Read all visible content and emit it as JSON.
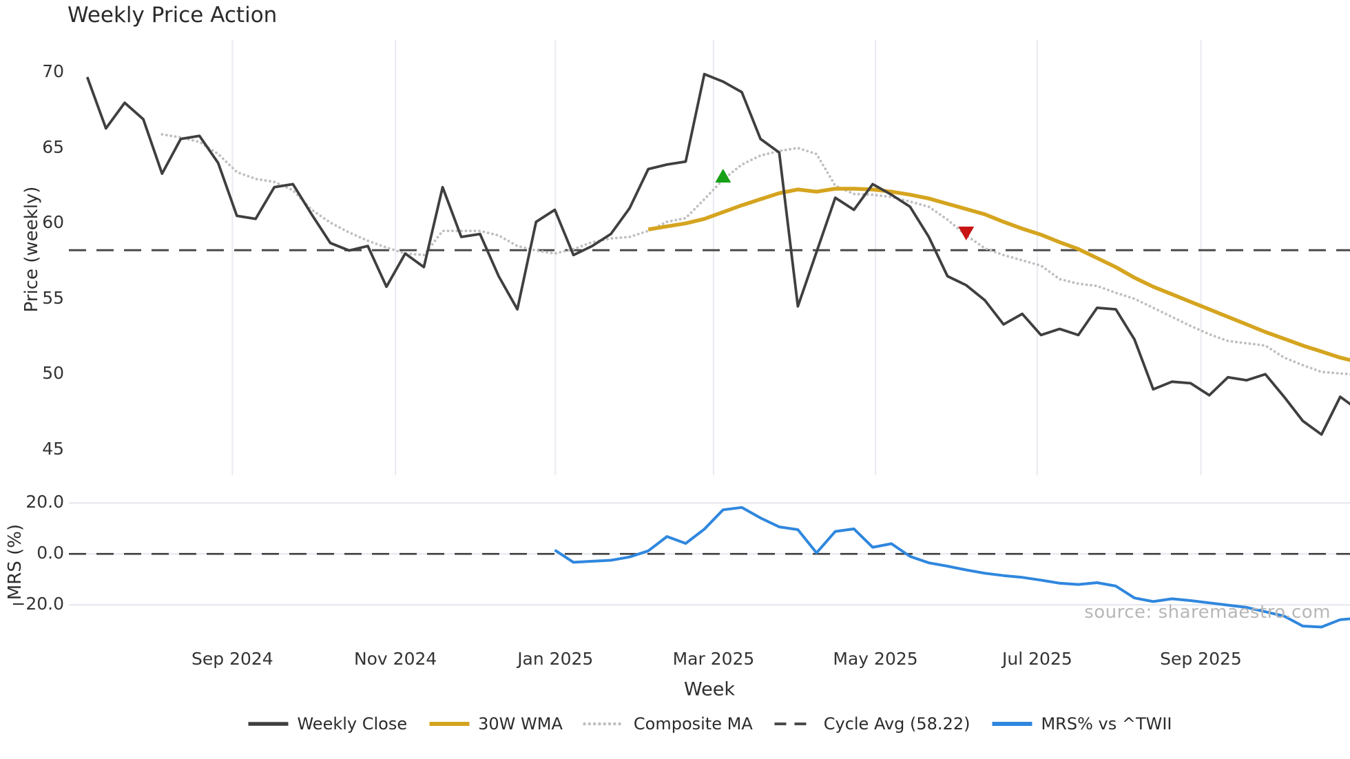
{
  "title": "Weekly Price Action",
  "watermark": "source: sharemaestro.com",
  "colors": {
    "close": "#3f3f3f",
    "wma": "#d5a41f",
    "composite": "#bfbfbf",
    "cycle_avg": "#4a4a4a",
    "mrs": "#2f87de",
    "grid": "#e8ebf1",
    "signal_up": "#16a016",
    "signal_down": "#c91414",
    "watermark": "#b7b7b7"
  },
  "legend": {
    "items": [
      {
        "label": "Weekly Close",
        "style": "solid",
        "color": "#3f3f3f",
        "width": 5.5
      },
      {
        "label": "30W WMA",
        "style": "solid",
        "color": "#d5a41f",
        "width": 6
      },
      {
        "label": "Composite MA",
        "style": "dotted",
        "color": "#bfbfbf",
        "width": 4.5
      },
      {
        "label": "Cycle Avg (58.22)",
        "style": "dashed",
        "color": "#4a4a4a",
        "width": 4
      },
      {
        "label": "MRS% vs ^TWII",
        "style": "solid",
        "color": "#2f87de",
        "width": 6
      }
    ]
  },
  "chart_data": {
    "type": "line",
    "xlabel": "Week",
    "x_unit": "weekly index, week 0 = first plotted week (Jul 2024), 69 weeks through Oct 2025",
    "n_weeks": 69,
    "x_ticks": [
      {
        "label": "Sep 2024",
        "week": 7.76
      },
      {
        "label": "Nov 2024",
        "week": 16.48
      },
      {
        "label": "Jan 2025",
        "week": 25.03
      },
      {
        "label": "Mar 2025",
        "week": 33.49
      },
      {
        "label": "May 2025",
        "week": 42.15
      },
      {
        "label": "Jul 2025",
        "week": 50.8
      },
      {
        "label": "Sep 2025",
        "week": 59.55
      }
    ],
    "panels": [
      {
        "name": "price",
        "ylabel": "Price (weekly)",
        "ylim": [
          43.3,
          72.3
        ],
        "grid": "vertical-only",
        "yticks": [
          {
            "label": "70",
            "value": 70
          },
          {
            "label": "65",
            "value": 65
          },
          {
            "label": "60",
            "value": 60
          },
          {
            "label": "55",
            "value": 55
          },
          {
            "label": "50",
            "value": 50
          },
          {
            "label": "45",
            "value": 45
          }
        ],
        "ref_line": {
          "label": "Cycle Avg (58.22)",
          "value": 58.22,
          "style": "dashed",
          "color": "#4a4a4a"
        },
        "series": [
          {
            "name": "Composite MA",
            "style": "dotted",
            "color": "#bfbfbf",
            "width": 3.8,
            "start_week": 4,
            "values": [
              65.9,
              65.7,
              65.4,
              64.6,
              63.4,
              62.95,
              62.75,
              62.2,
              60.9,
              60.05,
              59.4,
              58.85,
              58.4,
              58.0,
              57.9,
              59.5,
              59.5,
              59.5,
              59.2,
              58.5,
              58.2,
              58.0,
              58.3,
              58.75,
              59.0,
              59.1,
              59.5,
              60.1,
              60.35,
              61.6,
              62.9,
              63.9,
              64.5,
              64.8,
              65.0,
              64.6,
              62.5,
              61.95,
              61.9,
              61.75,
              61.45,
              61.1,
              60.25,
              59.2,
              58.35,
              57.9,
              57.55,
              57.2,
              56.3,
              56.0,
              55.85,
              55.4,
              55.0,
              54.4,
              53.8,
              53.2,
              52.65,
              52.2,
              52.05,
              51.9,
              51.1,
              50.6,
              50.15,
              50.05,
              49.95
            ]
          },
          {
            "name": "30W WMA",
            "style": "solid",
            "color": "#d5a41f",
            "width": 5.5,
            "start_week": 30,
            "values": [
              59.6,
              59.8,
              60.0,
              60.3,
              60.75,
              61.2,
              61.6,
              62.0,
              62.25,
              62.1,
              62.3,
              62.3,
              62.25,
              62.1,
              61.9,
              61.65,
              61.3,
              60.95,
              60.6,
              60.1,
              59.65,
              59.25,
              58.75,
              58.3,
              57.7,
              57.1,
              56.4,
              55.8,
              55.3,
              54.8,
              54.3,
              53.8,
              53.3,
              52.8,
              52.35,
              51.9,
              51.5,
              51.1,
              50.8
            ]
          },
          {
            "name": "Weekly Close",
            "style": "solid",
            "color": "#3f3f3f",
            "width": 3.8,
            "start_week": 0,
            "values": [
              69.7,
              66.3,
              68.0,
              66.9,
              63.3,
              65.6,
              65.8,
              64.0,
              60.5,
              60.3,
              62.4,
              62.6,
              60.6,
              58.7,
              58.2,
              58.5,
              55.8,
              58.0,
              57.1,
              62.4,
              59.1,
              59.3,
              56.5,
              54.3,
              60.1,
              60.9,
              57.9,
              58.5,
              59.3,
              61.0,
              63.6,
              63.9,
              64.1,
              69.9,
              69.4,
              68.7,
              65.6,
              64.7,
              54.5,
              58.1,
              61.7,
              60.9,
              62.6,
              61.9,
              61.1,
              59.1,
              56.5,
              55.9,
              54.9,
              53.3,
              54.0,
              52.6,
              53.0,
              52.6,
              54.4,
              54.3,
              52.3,
              49.0,
              49.5,
              49.4,
              48.6,
              49.8,
              49.6,
              50.0,
              48.5,
              46.9,
              46.0,
              48.5,
              47.6
            ]
          }
        ],
        "markers": [
          {
            "name": "up-signal",
            "shape": "triangle-up",
            "color": "#16a016",
            "week": 34,
            "value": 63.1
          },
          {
            "name": "down-signal",
            "shape": "triangle-down",
            "color": "#c91414",
            "week": 47,
            "value": 59.4
          }
        ]
      },
      {
        "name": "mrs",
        "ylabel": "MRS (%)",
        "ylim": [
          -30.2,
          24.1
        ],
        "grid": "horizontal-only",
        "grid_values": [
          20,
          0,
          -20
        ],
        "yticks": [
          {
            "label": "20.0",
            "value": 20
          },
          {
            "label": "0.0",
            "value": 0
          },
          {
            "label": "−20.0",
            "value": -20
          }
        ],
        "ref_line": {
          "label": "zero line",
          "value": 0,
          "style": "dashed",
          "color": "#3d3d3d"
        },
        "series": [
          {
            "name": "MRS% vs ^TWII",
            "style": "solid",
            "color": "#2f87de",
            "width": 4,
            "start_week": 25,
            "values": [
              1.5,
              -3.3,
              -2.9,
              -2.5,
              -1.2,
              1.2,
              6.8,
              4.1,
              9.7,
              17.3,
              18.2,
              14.1,
              10.6,
              9.5,
              0.4,
              8.8,
              9.8,
              2.6,
              4.0,
              -1.0,
              -3.5,
              -4.8,
              -6.3,
              -7.6,
              -8.5,
              -9.2,
              -10.3,
              -11.5,
              -12.0,
              -11.3,
              -12.6,
              -17.3,
              -18.7,
              -17.6,
              -18.3,
              -19.2,
              -20.1,
              -21.0,
              -22.7,
              -24.4,
              -28.3,
              -28.7,
              -25.8,
              -25.2
            ]
          }
        ]
      }
    ]
  }
}
